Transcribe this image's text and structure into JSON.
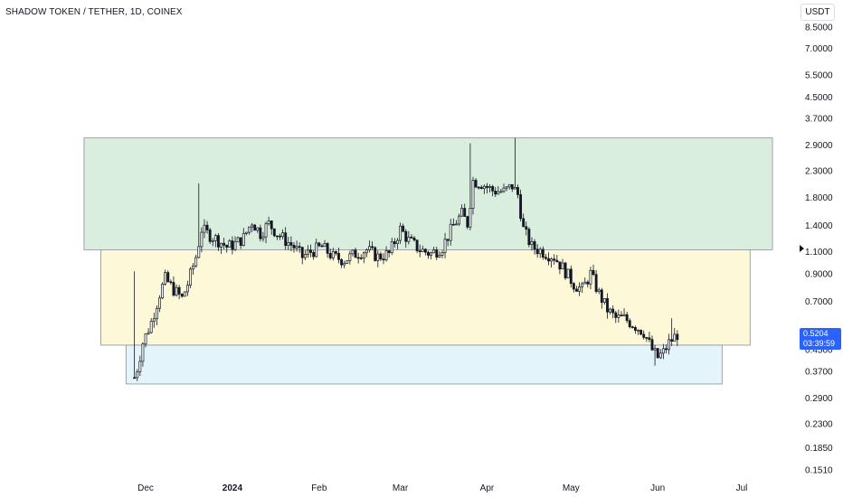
{
  "header": {
    "title": "SHADOW TOKEN / TETHER, 1D, COINEX"
  },
  "currency": "USDT",
  "last_price": {
    "price": "0.5204",
    "countdown": "03:39:59"
  },
  "colors": {
    "candle_stroke": "#131722",
    "green_zone": "#d9eedd",
    "yellow_zone": "#fdf8d8",
    "blue_zone": "#e4f4fb",
    "price_tag": "#2962ff"
  },
  "chart_data": {
    "type": "candlestick",
    "title": "SHADOW TOKEN / TETHER, 1D, COINEX",
    "y_scale": "log",
    "ylim": [
      0.14,
      9.5
    ],
    "y_ticks": [
      "8.5000",
      "7.0000",
      "5.5000",
      "4.5000",
      "3.7000",
      "2.9000",
      "2.3000",
      "1.8000",
      "1.4000",
      "1.1000",
      "0.9000",
      "0.7000",
      "0.5500",
      "0.4500",
      "0.3700",
      "0.2900",
      "0.2300",
      "0.1850",
      "0.1510"
    ],
    "x_ticks": [
      {
        "label": "Dec",
        "bold": false
      },
      {
        "label": "2024",
        "bold": true
      },
      {
        "label": "Feb",
        "bold": false
      },
      {
        "label": "Mar",
        "bold": false
      },
      {
        "label": "Apr",
        "bold": false
      },
      {
        "label": "May",
        "bold": false
      },
      {
        "label": "Jun",
        "bold": false
      },
      {
        "label": "Jul",
        "bold": false
      }
    ],
    "zones": [
      {
        "name": "green",
        "low": 1.12,
        "high": 3.1,
        "start": "2023-11-09",
        "end": "2024-07-12"
      },
      {
        "name": "yellow",
        "low": 0.47,
        "high": 1.12,
        "start": "2023-11-15",
        "end": "2024-07-04"
      },
      {
        "name": "blue",
        "low": 0.33,
        "high": 0.47,
        "start": "2023-11-24",
        "end": "2024-06-24"
      }
    ],
    "price_path": [
      [
        "2023-11-27",
        0.35
      ],
      [
        "2023-11-28",
        0.38
      ],
      [
        "2023-11-30",
        0.48
      ],
      [
        "2023-12-03",
        0.58
      ],
      [
        "2023-12-06",
        0.75
      ],
      [
        "2023-12-08",
        0.86
      ],
      [
        "2023-12-11",
        0.78
      ],
      [
        "2023-12-14",
        0.72
      ],
      [
        "2023-12-16",
        0.82
      ],
      [
        "2023-12-19",
        1.05
      ],
      [
        "2023-12-21",
        1.35
      ],
      [
        "2023-12-24",
        1.28
      ],
      [
        "2023-12-27",
        1.22
      ],
      [
        "2023-12-30",
        1.15
      ],
      [
        "2024-01-02",
        1.18
      ],
      [
        "2024-01-05",
        1.25
      ],
      [
        "2024-01-08",
        1.45
      ],
      [
        "2024-01-11",
        1.3
      ],
      [
        "2024-01-14",
        1.42
      ],
      [
        "2024-01-17",
        1.3
      ],
      [
        "2024-01-20",
        1.22
      ],
      [
        "2024-01-23",
        1.15
      ],
      [
        "2024-01-26",
        1.05
      ],
      [
        "2024-01-29",
        1.1
      ],
      [
        "2024-02-02",
        1.15
      ],
      [
        "2024-02-06",
        1.05
      ],
      [
        "2024-02-10",
        1.02
      ],
      [
        "2024-02-14",
        1.08
      ],
      [
        "2024-02-18",
        1.12
      ],
      [
        "2024-02-22",
        1.05
      ],
      [
        "2024-02-26",
        1.08
      ],
      [
        "2024-03-01",
        1.35
      ],
      [
        "2024-03-04",
        1.22
      ],
      [
        "2024-03-08",
        1.12
      ],
      [
        "2024-03-12",
        1.08
      ],
      [
        "2024-03-16",
        1.15
      ],
      [
        "2024-03-20",
        1.4
      ],
      [
        "2024-03-23",
        1.55
      ],
      [
        "2024-03-25",
        1.42
      ],
      [
        "2024-03-27",
        2.1
      ],
      [
        "2024-03-30",
        2.05
      ],
      [
        "2024-04-03",
        1.92
      ],
      [
        "2024-04-07",
        1.9
      ],
      [
        "2024-04-10",
        2.0
      ],
      [
        "2024-04-12",
        1.85
      ],
      [
        "2024-04-14",
        1.35
      ],
      [
        "2024-04-17",
        1.15
      ],
      [
        "2024-04-21",
        1.1
      ],
      [
        "2024-04-25",
        1.05
      ],
      [
        "2024-04-29",
        0.92
      ],
      [
        "2024-05-02",
        0.82
      ],
      [
        "2024-05-05",
        0.78
      ],
      [
        "2024-05-08",
        0.9
      ],
      [
        "2024-05-11",
        0.75
      ],
      [
        "2024-05-14",
        0.65
      ],
      [
        "2024-05-17",
        0.6
      ],
      [
        "2024-05-20",
        0.6
      ],
      [
        "2024-05-24",
        0.56
      ],
      [
        "2024-05-27",
        0.53
      ],
      [
        "2024-05-30",
        0.45
      ],
      [
        "2024-06-01",
        0.42
      ],
      [
        "2024-06-03",
        0.44
      ],
      [
        "2024-06-05",
        0.48
      ],
      [
        "2024-06-08",
        0.52
      ]
    ]
  }
}
